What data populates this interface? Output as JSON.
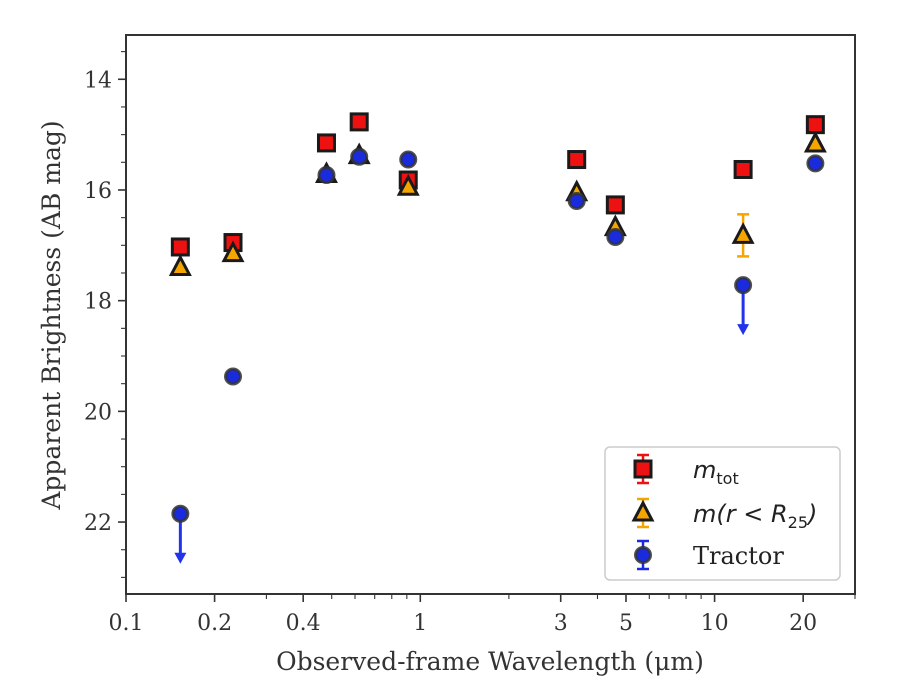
{
  "chart_data": {
    "type": "scatter",
    "xscale": "log",
    "xlabel": "Observed-frame Wavelength (μm)",
    "ylabel": "Apparent Brightness (AB mag)",
    "xlim": [
      0.1,
      30
    ],
    "ylim": [
      23.3,
      13.2
    ],
    "y_inverted": true,
    "x_major_ticks": [
      {
        "value": 0.1,
        "label": "0.1"
      },
      {
        "value": 0.2,
        "label": "0.2"
      },
      {
        "value": 0.4,
        "label": "0.4"
      },
      {
        "value": 1,
        "label": "1"
      },
      {
        "value": 3,
        "label": "3"
      },
      {
        "value": 5,
        "label": "5"
      },
      {
        "value": 10,
        "label": "10"
      },
      {
        "value": 20,
        "label": "20"
      }
    ],
    "y_major_ticks": [
      {
        "value": 14,
        "label": "14"
      },
      {
        "value": 16,
        "label": "16"
      },
      {
        "value": 18,
        "label": "18"
      },
      {
        "value": 20,
        "label": "20"
      },
      {
        "value": 22,
        "label": "22"
      }
    ],
    "legend_position": "lower-right",
    "series": [
      {
        "name": "m_tot",
        "legend_label": "m",
        "legend_sub": "tot",
        "marker": "square",
        "color": "#ee1111",
        "edge": "#1a1a1a",
        "points": [
          {
            "x": 0.153,
            "y": 17.03
          },
          {
            "x": 0.231,
            "y": 16.95
          },
          {
            "x": 0.48,
            "y": 15.15
          },
          {
            "x": 0.62,
            "y": 14.77
          },
          {
            "x": 0.91,
            "y": 15.82
          },
          {
            "x": 3.4,
            "y": 15.45
          },
          {
            "x": 4.6,
            "y": 16.27
          },
          {
            "x": 12.5,
            "y": 15.63
          },
          {
            "x": 22.0,
            "y": 14.82
          }
        ]
      },
      {
        "name": "m(r < R25)",
        "legend_label": "m(r < R",
        "legend_sub": "25",
        "legend_close": ")",
        "marker": "triangle",
        "color": "#f5a500",
        "edge": "#1a1a1a",
        "points": [
          {
            "x": 0.153,
            "y": 17.4
          },
          {
            "x": 0.231,
            "y": 17.15
          },
          {
            "x": 0.48,
            "y": 15.72
          },
          {
            "x": 0.62,
            "y": 15.38
          },
          {
            "x": 0.91,
            "y": 15.95
          },
          {
            "x": 3.4,
            "y": 16.05
          },
          {
            "x": 4.6,
            "y": 16.68
          },
          {
            "x": 12.5,
            "y": 16.82,
            "yerr": 0.38
          },
          {
            "x": 22.0,
            "y": 15.17
          }
        ]
      },
      {
        "name": "Tractor",
        "legend_label": "Tractor",
        "marker": "circle",
        "color": "#1a2bdd",
        "edge": "#333333",
        "points": [
          {
            "x": 0.153,
            "y": 21.85,
            "upper_limit": true
          },
          {
            "x": 0.231,
            "y": 19.37
          },
          {
            "x": 0.48,
            "y": 15.73
          },
          {
            "x": 0.62,
            "y": 15.4
          },
          {
            "x": 0.91,
            "y": 15.45
          },
          {
            "x": 3.4,
            "y": 16.2
          },
          {
            "x": 4.6,
            "y": 16.85
          },
          {
            "x": 12.5,
            "y": 17.72,
            "upper_limit": true
          },
          {
            "x": 22.0,
            "y": 15.52
          }
        ]
      }
    ]
  }
}
